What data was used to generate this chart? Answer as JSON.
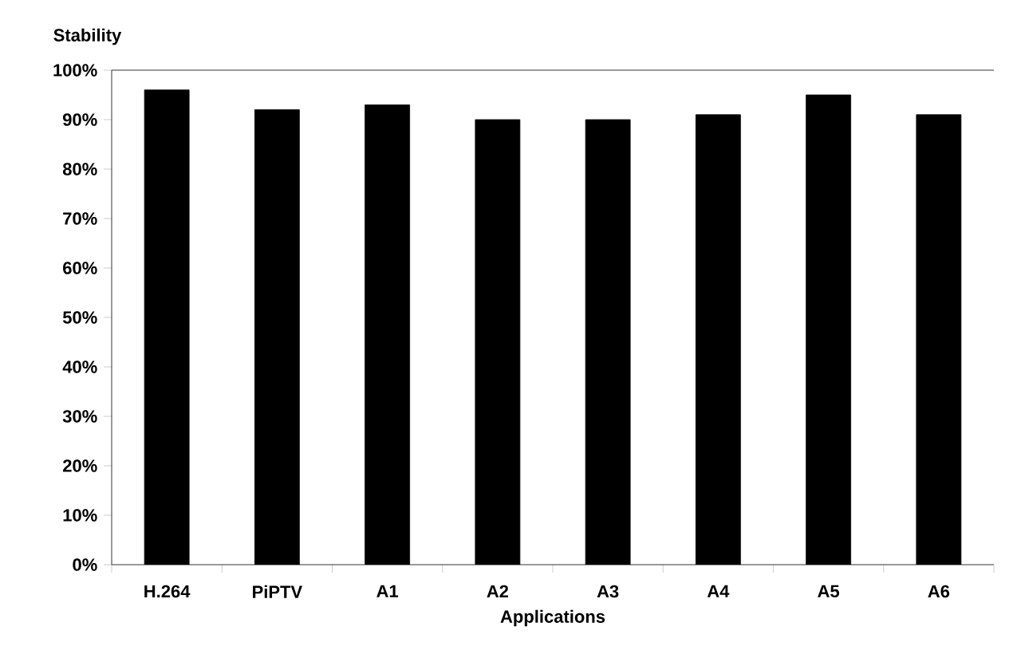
{
  "chart_data": {
    "type": "bar",
    "ylabel": "Stability",
    "xlabel": "Applications",
    "categories": [
      "H.264",
      "PiPTV",
      "A1",
      "A2",
      "A3",
      "A4",
      "A5",
      "A6"
    ],
    "values": [
      96,
      92,
      93,
      90,
      90,
      91,
      95,
      91
    ],
    "color": "#000000",
    "ylim": [
      0,
      100
    ],
    "yticks": [
      {
        "value": 0,
        "label": "0%"
      },
      {
        "value": 10,
        "label": "10%"
      },
      {
        "value": 20,
        "label": "20%"
      },
      {
        "value": 30,
        "label": "30%"
      },
      {
        "value": 40,
        "label": "40%"
      },
      {
        "value": 50,
        "label": "50%"
      },
      {
        "value": 60,
        "label": "60%"
      },
      {
        "value": 70,
        "label": "70%"
      },
      {
        "value": 80,
        "label": "80%"
      },
      {
        "value": 90,
        "label": "90%"
      },
      {
        "value": 100,
        "label": "100%"
      }
    ],
    "grid": false
  }
}
